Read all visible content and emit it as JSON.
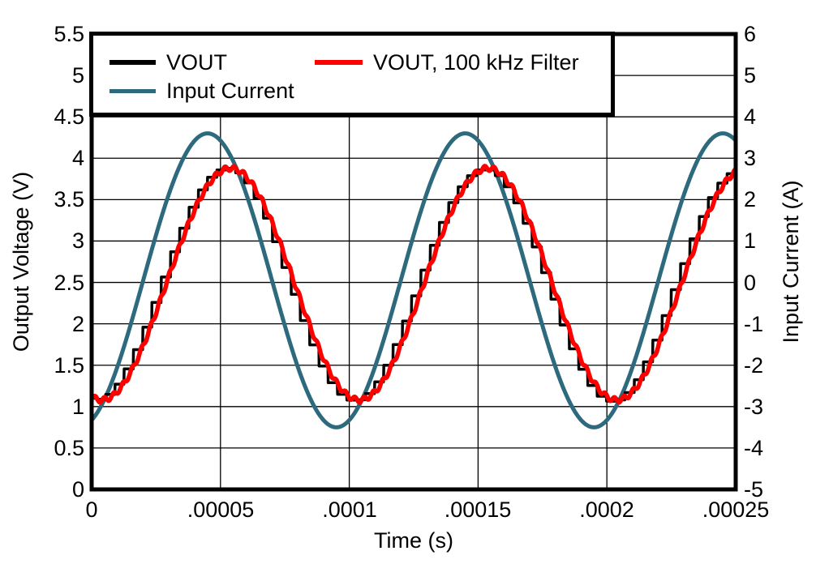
{
  "chart_data": {
    "type": "line",
    "title": "",
    "xlabel": "Time (s)",
    "ylabel_left": "Output Voltage (V)",
    "ylabel_right": "Input Current (A)",
    "x_range": [
      0,
      0.00025
    ],
    "x_ticks": [
      "0",
      ".00005",
      ".0001",
      ".00015",
      ".0002",
      ".00025"
    ],
    "x_tick_values": [
      0,
      5e-05,
      0.0001,
      0.00015,
      0.0002,
      0.00025
    ],
    "y_left_range": [
      0,
      5.5
    ],
    "y_left_ticks": [
      "5.5",
      "5",
      "4.5",
      "4",
      "3.5",
      "3",
      "2.5",
      "2",
      "1.5",
      "1",
      "0.5",
      "0"
    ],
    "y_right_range": [
      -5,
      6
    ],
    "y_right_ticks": [
      "6",
      "5",
      "4",
      "3",
      "2",
      "1",
      "0",
      "-1",
      "-2",
      "-3",
      "-4",
      "-5"
    ],
    "grid": {
      "on": true,
      "color": "#000000",
      "vertical_step_s": 5e-05,
      "horizontal_step_left_V": 0.5
    },
    "legend_position": "top-left",
    "frame_color": "#000000",
    "background": "#ffffff",
    "series": [
      {
        "name": "Input Current",
        "axis": "right",
        "color": "#2E6A7E",
        "style": "smooth-sine",
        "line_width": 5,
        "waveform": {
          "shape": "sine",
          "offset": 0.05,
          "amplitude": 3.55,
          "period_s": 0.0001,
          "phase_deg": -72
        },
        "keypoints_t_s": [
          0,
          2e-05,
          4.5e-05,
          7e-05,
          9.5e-05,
          0.00012,
          0.000145,
          0.00017,
          0.000195,
          0.00022,
          0.000245,
          0.00025
        ],
        "keypoints_A": [
          -3.33,
          0.05,
          3.6,
          0.05,
          -3.5,
          0.05,
          3.6,
          0.05,
          -3.5,
          0.05,
          3.6,
          3.5
        ]
      },
      {
        "name": "VOUT",
        "axis": "left",
        "color": "#000000",
        "style": "stepped",
        "line_width": 3.5,
        "waveform": {
          "shape": "stepped-sine",
          "offset": 2.48,
          "amplitude": 1.4,
          "period_s": 0.0001,
          "phase_deg": -100,
          "step_s": 3.6e-06,
          "noise": 0.018
        },
        "keypoints_t_s": [
          0,
          2.8e-06,
          5.28e-05,
          0.0001028,
          0.0001528,
          0.0002028,
          0.00025
        ],
        "keypoints_V": [
          1.1,
          1.08,
          3.88,
          1.08,
          3.88,
          1.08,
          3.86
        ]
      },
      {
        "name": "VOUT, 100 kHz Filter",
        "axis": "left",
        "color": "#FF0000",
        "style": "smooth-ripple",
        "line_width": 5.5,
        "waveform": {
          "shape": "sine",
          "offset": 2.48,
          "amplitude": 1.4,
          "period_s": 0.0001,
          "phase_deg": -104,
          "ripple": 0.03,
          "ripple_period_s": 3.6e-06
        },
        "keypoints_t_s": [
          0,
          4e-06,
          5.4e-05,
          0.000104,
          0.000154,
          0.000204,
          0.00025
        ],
        "keypoints_V": [
          1.12,
          1.08,
          3.88,
          1.08,
          3.88,
          1.08,
          3.83
        ]
      }
    ]
  },
  "legend": {
    "items": [
      {
        "label": "VOUT"
      },
      {
        "label": "VOUT, 100 kHz Filter"
      },
      {
        "label": "Input Current"
      }
    ]
  }
}
